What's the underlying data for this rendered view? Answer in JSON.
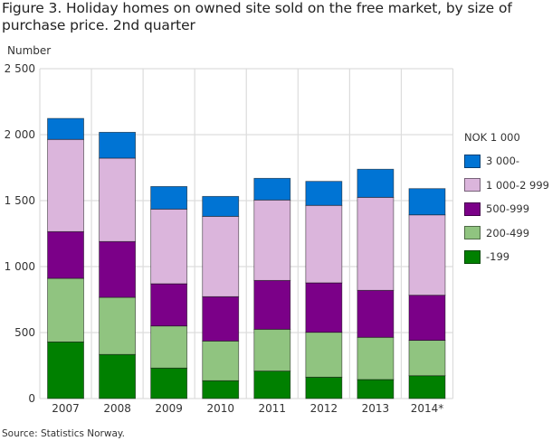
{
  "title": "Figure 3. Holiday homes on owned site sold on the free market, by size of purchase price. 2nd quarter",
  "source": "Source: Statistics Norway.",
  "chart_data": {
    "type": "bar",
    "stacked": true,
    "title": "Figure 3. Holiday homes on owned site sold on the free market, by size of purchase price. 2nd quarter",
    "xlabel": "",
    "ylabel": "Number",
    "ylim": [
      0,
      2500
    ],
    "yticks": [
      0,
      500,
      1000,
      1500,
      2000,
      2500
    ],
    "ytick_labels": [
      "0",
      "500",
      "1 000",
      "1 500",
      "2 000",
      "2 500"
    ],
    "grid": true,
    "legend_title": "NOK 1 000",
    "legend_position": "right",
    "categories": [
      "2007",
      "2008",
      "2009",
      "2010",
      "2011",
      "2012",
      "2013",
      "2014*"
    ],
    "series": [
      {
        "name": "-199",
        "color": "#008000",
        "values": [
          429,
          334,
          231,
          135,
          208,
          162,
          144,
          173
        ]
      },
      {
        "name": "200-499",
        "color": "#90c480",
        "values": [
          482,
          433,
          319,
          301,
          317,
          340,
          320,
          268
        ]
      },
      {
        "name": "500-999",
        "color": "#7b0088",
        "values": [
          354,
          423,
          320,
          336,
          370,
          375,
          356,
          342
        ]
      },
      {
        "name": "1 000-2 999",
        "color": "#dbb5dc",
        "values": [
          699,
          632,
          566,
          609,
          610,
          587,
          705,
          609
        ]
      },
      {
        "name": "3 000-",
        "color": "#0074d4",
        "values": [
          159,
          196,
          171,
          151,
          164,
          182,
          213,
          199
        ]
      }
    ]
  }
}
